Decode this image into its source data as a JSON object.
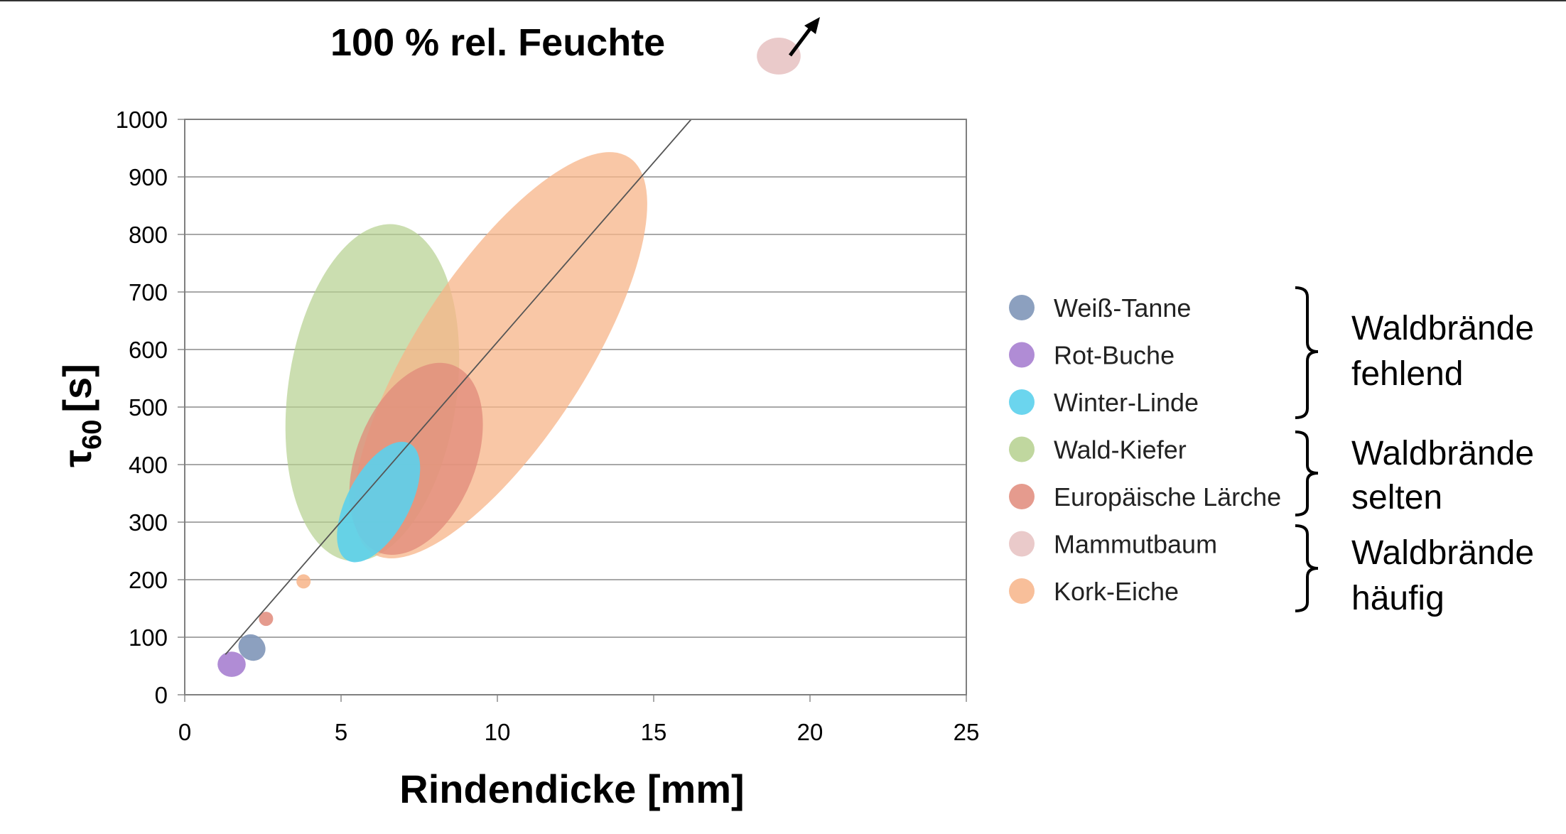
{
  "top_annotation": "100 % rel. Feuchte",
  "chart_data": {
    "type": "scatter",
    "title": "",
    "xlabel": "Rindendicke [mm]",
    "ylabel_main": "τ",
    "ylabel_sub": "60",
    "ylabel_unit": "[s]",
    "xlim": [
      0,
      25
    ],
    "ylim": [
      0,
      1000
    ],
    "x_ticks": [
      0,
      5,
      10,
      15,
      20,
      25
    ],
    "y_ticks": [
      0,
      100,
      200,
      300,
      400,
      500,
      600,
      700,
      800,
      900,
      1000
    ],
    "grid": "horizontal",
    "legend_position": "right",
    "trend_line": {
      "x": [
        1.3,
        16.2
      ],
      "y": [
        70,
        1000
      ]
    },
    "series": [
      {
        "name": "Weiß-Tanne",
        "color": "#7f96b8",
        "opacity": 0.9,
        "ellipse": {
          "cx": 2.15,
          "cy": 82,
          "rx": 0.45,
          "ry": 22,
          "angle": 40
        }
      },
      {
        "name": "Rot-Buche",
        "color": "#a77fd0",
        "opacity": 0.9,
        "ellipse": {
          "cx": 1.5,
          "cy": 53,
          "rx": 0.45,
          "ry": 22,
          "angle": 0
        }
      },
      {
        "name": "Winter-Linde",
        "color": "#5bd0ec",
        "opacity": 0.9,
        "ellipse": {
          "cx": 6.2,
          "cy": 335,
          "rx": 1.0,
          "ry": 115,
          "angle": 28
        }
      },
      {
        "name": "Wald-Kiefer",
        "color": "#b5d08e",
        "opacity": 0.7,
        "ellipse": {
          "cx": 6.0,
          "cy": 525,
          "rx": 2.7,
          "ry": 295,
          "angle": 8
        }
      },
      {
        "name": "Europäische Lärche",
        "color": "#e08a7a",
        "opacity": 0.75,
        "ellipse": {
          "cx": 7.4,
          "cy": 410,
          "rx": 1.9,
          "ry": 175,
          "angle": 22
        }
      },
      {
        "name": "Mammutbaum",
        "color": "#e8c4c4",
        "opacity": 0.9,
        "ellipse": {
          "cx": 19.0,
          "cy": 1110,
          "rx": 0.7,
          "ry": 32,
          "angle": 0
        }
      },
      {
        "name": "Kork-Eiche",
        "color": "#f7b488",
        "opacity": 0.75,
        "ellipse": {
          "cx": 10.1,
          "cy": 590,
          "rx": 2.7,
          "ry": 410,
          "angle": 33
        }
      }
    ],
    "extra_points": [
      {
        "x": 2.6,
        "y": 132,
        "color": "#e08a7a"
      },
      {
        "x": 3.8,
        "y": 197,
        "color": "#f7b488"
      }
    ]
  },
  "groups": [
    {
      "line1": "Waldbrände",
      "line2": "fehlend"
    },
    {
      "line1": "Waldbrände",
      "line2": "selten"
    },
    {
      "line1": "Waldbrände",
      "line2": "häufig"
    }
  ]
}
